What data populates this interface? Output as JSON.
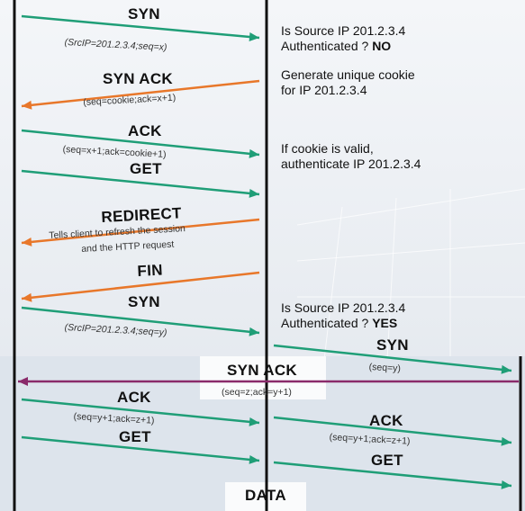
{
  "colors": {
    "green_arrow": "#1f9e77",
    "orange_arrow": "#e8772a",
    "purple_arrow": "#8a2a6a",
    "lifeline": "#111111",
    "background_top": "#e9edf2",
    "background_band": "#dfe6ee"
  },
  "messages": [
    {
      "label": "SYN",
      "detail": "(SrcIP=201.2.3.4;seq=x)"
    },
    {
      "label": "SYN ACK",
      "detail": "(seq=cookie;ack=x+1)"
    },
    {
      "label": "ACK",
      "detail": "(seq=x+1;ack=cookie+1)"
    },
    {
      "label": "GET",
      "detail": ""
    },
    {
      "label": "REDIRECT",
      "detail_line1": "Tells client to refresh the session",
      "detail_line2": "and the HTTP request"
    },
    {
      "label": "FIN",
      "detail": ""
    },
    {
      "label": "SYN",
      "detail": "(SrcIP=201.2.3.4;seq=y)"
    },
    {
      "label": "SYN",
      "detail": "(seq=y)"
    },
    {
      "label": "SYN ACK",
      "detail": "(seq=z;ack=y+1)"
    },
    {
      "label": "ACK",
      "detail": "(seq=y+1;ack=z+1)"
    },
    {
      "label": "GET",
      "detail": ""
    },
    {
      "label": "ACK",
      "detail": "(seq=y+1;ack=z+1)"
    },
    {
      "label": "GET",
      "detail": ""
    }
  ],
  "notes": [
    {
      "line1": "Is Source IP 201.2.3.4",
      "line2": "Authenticated ? ",
      "emph": "NO"
    },
    {
      "line1": "Generate unique cookie",
      "line2": "for IP 201.2.3.4"
    },
    {
      "line1": "If cookie is valid,",
      "line2": "authenticate IP 201.2.3.4"
    },
    {
      "line1": "Is Source IP 201.2.3.4",
      "line2": "Authenticated ? ",
      "emph": "YES"
    }
  ],
  "footer": {
    "label": "DATA"
  }
}
